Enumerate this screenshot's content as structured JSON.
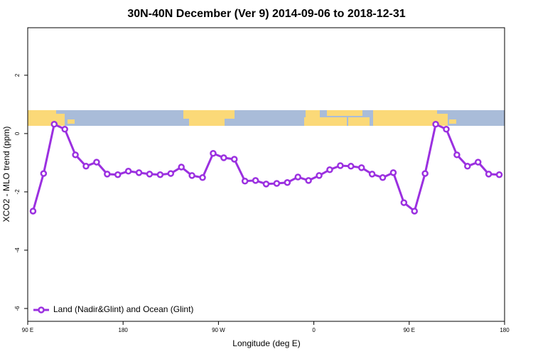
{
  "chart_data": {
    "type": "line",
    "title": "30N-40N December (Ver 9)   2014-09-06 to 2018-12-31",
    "x_label": "Longitude (deg E)",
    "y_label": "XCO2 - MLO trend (ppm)",
    "x": [
      95,
      105,
      115,
      125,
      135,
      145,
      155,
      165,
      175,
      185,
      195,
      205,
      215,
      225,
      235,
      245,
      255,
      265,
      275,
      285,
      295,
      305,
      315,
      325,
      335,
      345,
      355,
      365,
      375,
      385,
      395,
      405,
      415,
      425,
      435,
      445,
      455,
      465,
      475,
      485,
      495,
      505,
      515,
      525,
      535
    ],
    "series": [
      {
        "name": "Land (Nadir&Glint) and Ocean (Glint)",
        "color": "#9b30e0",
        "values": [
          -2.66,
          -1.37,
          0.32,
          0.15,
          -0.73,
          -1.12,
          -0.98,
          -1.39,
          -1.41,
          -1.29,
          -1.34,
          -1.39,
          -1.41,
          -1.37,
          -1.15,
          -1.44,
          -1.51,
          -0.68,
          -0.83,
          -0.88,
          -1.63,
          -1.61,
          -1.73,
          -1.71,
          -1.68,
          -1.49,
          -1.61,
          -1.44,
          -1.24,
          -1.1,
          -1.12,
          -1.17,
          -1.39,
          -1.51,
          -1.34,
          -2.37,
          -2.66,
          -1.37,
          0.32,
          0.15,
          -0.73,
          -1.12,
          -0.98,
          -1.39,
          -1.41
        ]
      }
    ],
    "xlim": [
      90,
      540
    ],
    "xticks": [
      {
        "value": 90,
        "label": "90 E"
      },
      180,
      {
        "value": 270,
        "label": "90 W"
      },
      {
        "value": 360,
        "label": "0"
      },
      {
        "value": 450,
        "label": "90 E"
      },
      {
        "value": 540,
        "label": "180"
      }
    ],
    "ylim": [
      -6.44,
      3.63
    ],
    "yticks": [
      -6,
      -4,
      -2,
      0,
      2
    ],
    "legend": "bottomleft"
  }
}
